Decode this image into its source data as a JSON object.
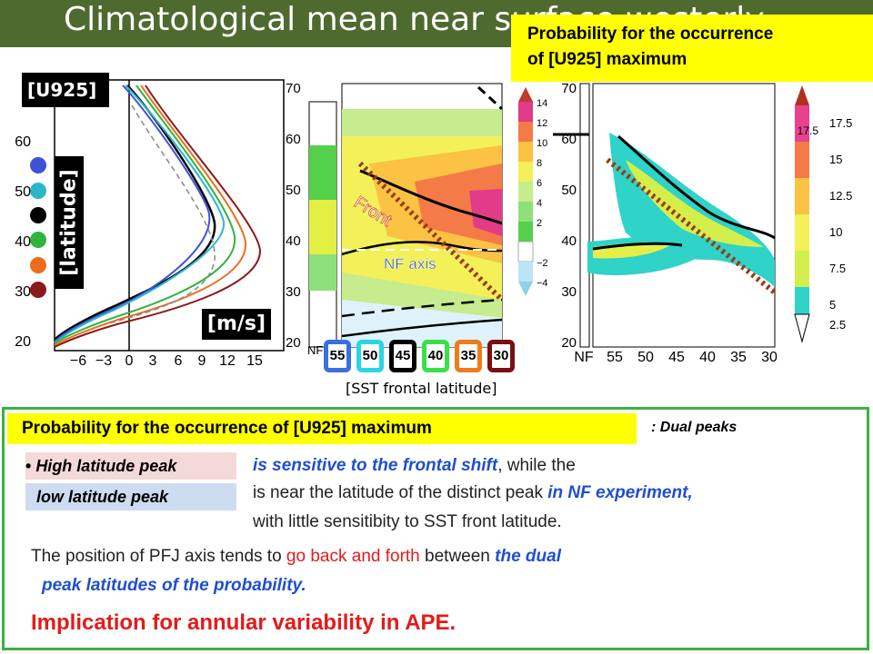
{
  "slide": {
    "title": "Climatological mean near surface westerly",
    "top_box": {
      "line1": "Probability for the occurrence",
      "line2": "of [U925] maximum"
    },
    "panel_left": {
      "u_label": "[U925]",
      "lat_label": "[latitude]",
      "unit_label": "[m/s]",
      "y_ticks": [
        "20",
        "30",
        "40",
        "50",
        "60"
      ],
      "x_ticks": [
        "−6",
        "−3",
        "0",
        "3",
        "6",
        "9",
        "12",
        "15"
      ],
      "dot_colors": [
        "#3f51d9",
        "#2ab8c9",
        "#000000",
        "#2fb33f",
        "#ef6c1c",
        "#8b1a1a"
      ]
    },
    "panel_mid": {
      "y_ticks": [
        "20",
        "30",
        "40",
        "50",
        "60",
        "70"
      ],
      "x_ticks": [
        "NF"
      ],
      "front_label": "Front",
      "nf_axis_label": "NF axis",
      "colorbar": [
        "14",
        "12",
        "10",
        "8",
        "6",
        "4",
        "2",
        "−2",
        "−4"
      ]
    },
    "sst_boxes": [
      {
        "label": "55",
        "color": "#3a6fe0"
      },
      {
        "label": "50",
        "color": "#28d6e6"
      },
      {
        "label": "45",
        "color": "#000000"
      },
      {
        "label": "40",
        "color": "#39e04a"
      },
      {
        "label": "35",
        "color": "#f07a1c"
      },
      {
        "label": "30",
        "color": "#7a0f0f"
      }
    ],
    "sst_label": "[SST frontal latitude]",
    "panel_right": {
      "y_ticks": [
        "20",
        "30",
        "40",
        "50",
        "60",
        "70"
      ],
      "x_ticks": [
        "NF",
        "55",
        "50",
        "45",
        "40",
        "35",
        "30"
      ],
      "colorbar": [
        "17.5",
        "15",
        "12.5",
        "10",
        "7.5",
        "5",
        "2.5"
      ]
    },
    "bottom": {
      "heading": "Probability for the occurrence of [U925] maximum",
      "dual_peaks": ": Dual peaks",
      "high_peak": "High latitude peak",
      "low_peak": "low latitude peak",
      "line1_a": "is sensitive to the frontal shift",
      "line1_b": ", while the",
      "line2_a": "is near the latitude of the distinct peak ",
      "line2_b": "in NF experiment,",
      "line3": "with little sensitibity to SST front latitude.",
      "line4_a": "The position of PFJ axis tends to ",
      "line4_b": "go back and forth",
      "line4_c": " between ",
      "line4_d": "the dual",
      "line5": "peak latitudes of the probability.",
      "line6": "Implication for annular variability in APE."
    }
  }
}
